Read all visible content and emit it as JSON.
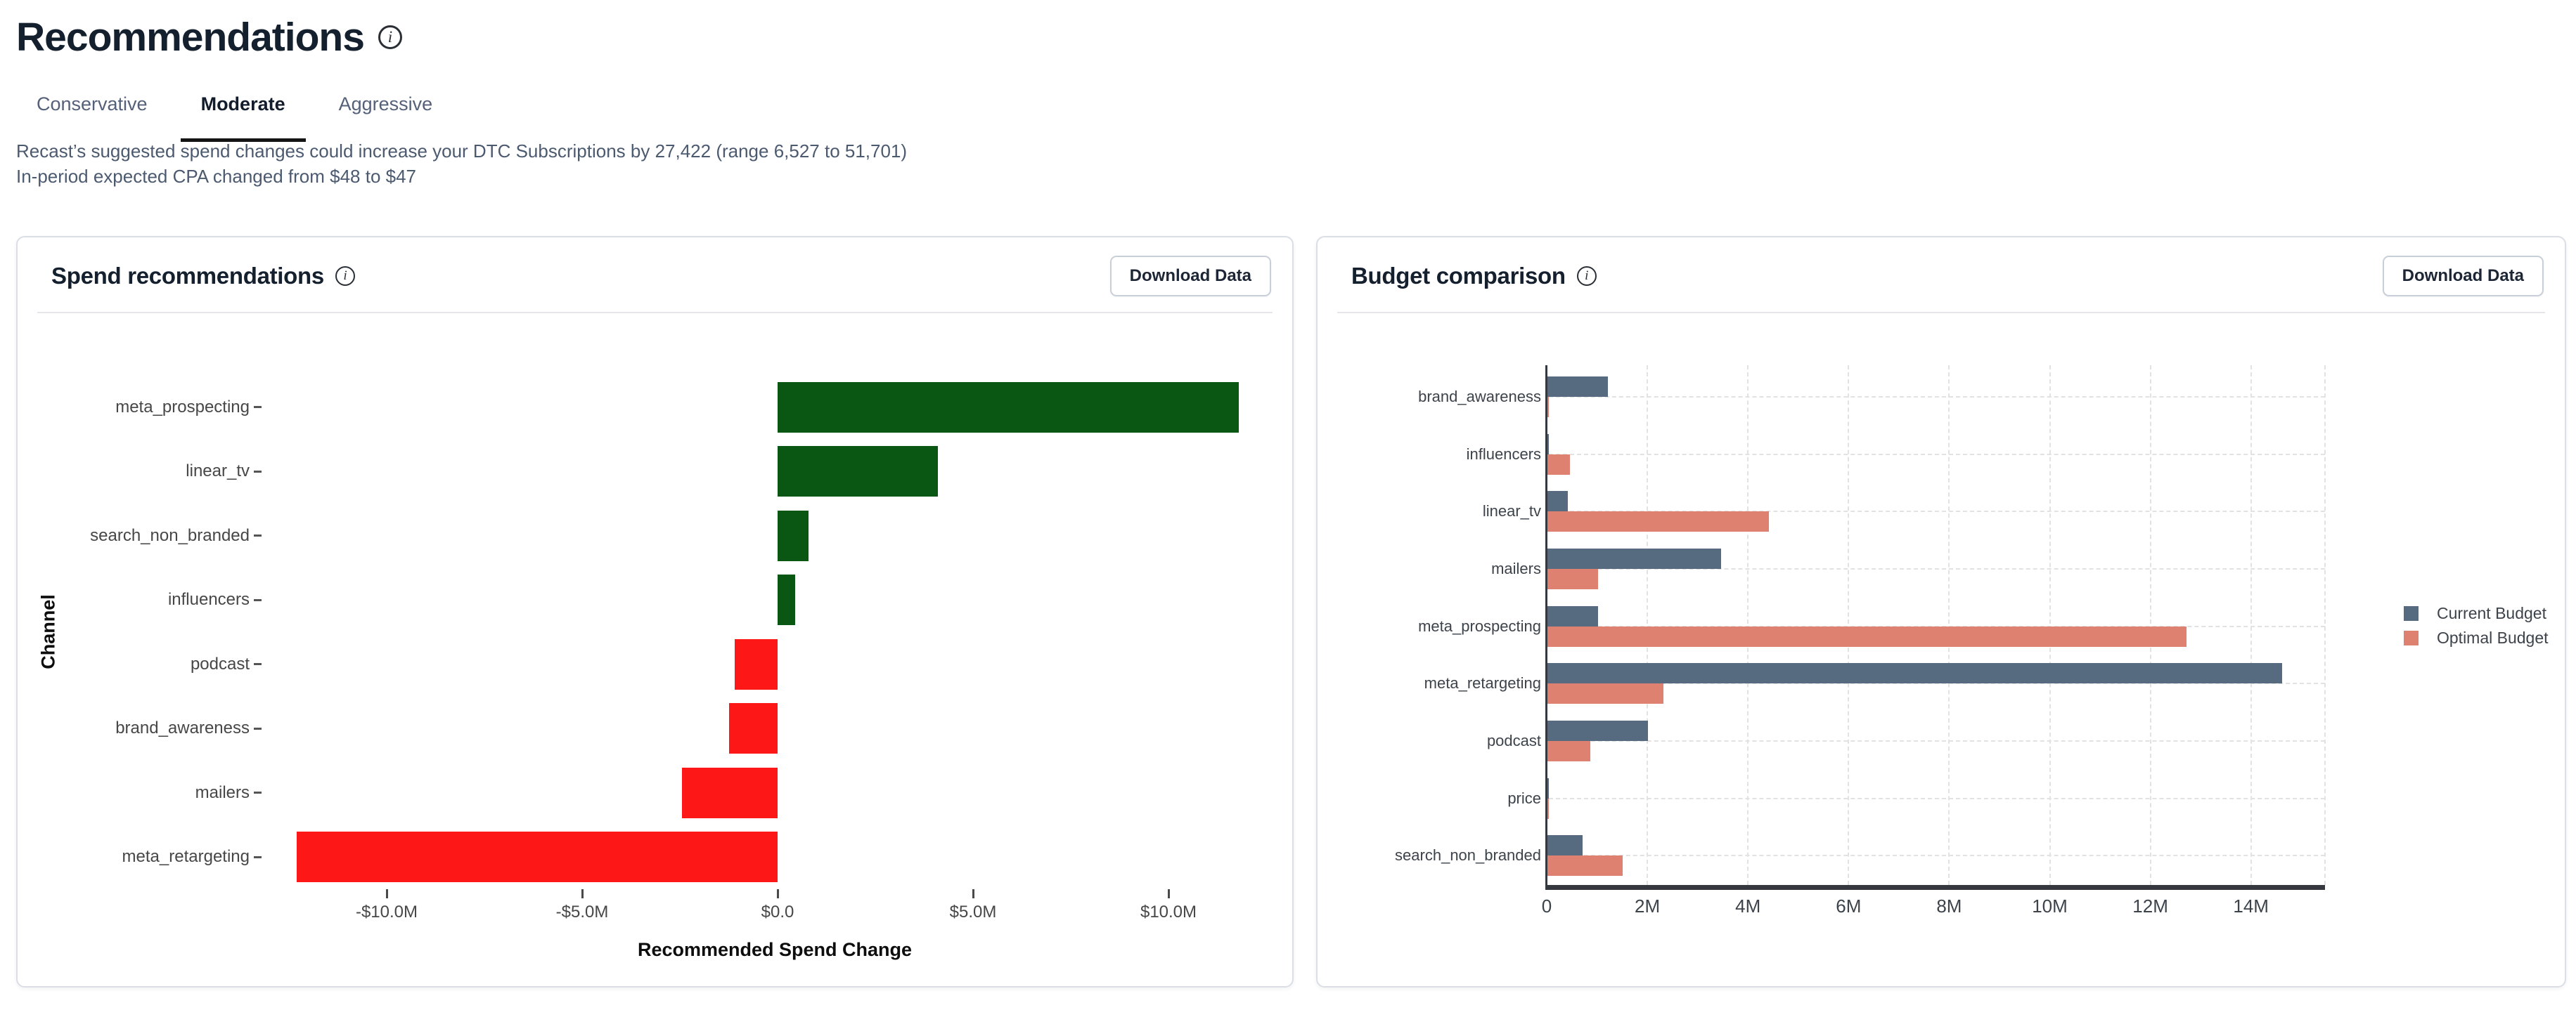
{
  "header": {
    "title": "Recommendations",
    "tabs": [
      {
        "label": "Conservative",
        "active": false
      },
      {
        "label": "Moderate",
        "active": true
      },
      {
        "label": "Aggressive",
        "active": false
      }
    ],
    "summary_line1": "Recast’s suggested spend changes could increase your DTC Subscriptions by 27,422 (range 6,527 to 51,701)",
    "summary_line2": "In-period expected CPA changed from $48 to $47"
  },
  "cards": {
    "spend": {
      "title": "Spend recommendations",
      "download_label": "Download Data"
    },
    "budget": {
      "title": "Budget comparison",
      "download_label": "Download Data"
    }
  },
  "chart_data": [
    {
      "id": "spend_recommendations",
      "type": "bar",
      "orientation": "horizontal",
      "title": "Spend recommendations",
      "categories": [
        "meta_prospecting",
        "linear_tv",
        "search_non_branded",
        "influencers",
        "podcast",
        "brand_awareness",
        "mailers",
        "meta_retargeting"
      ],
      "values": [
        11.8,
        4.1,
        0.8,
        0.45,
        -1.1,
        -1.25,
        -2.45,
        -12.3
      ],
      "unit": "USD millions",
      "xlabel": "Recommended Spend Change",
      "ylabel": "Channel",
      "xlim": [
        -12.7,
        12.55
      ],
      "xticks": [
        -10,
        -5,
        0,
        5,
        10
      ],
      "xtick_labels": [
        "-$10.0M",
        "-$5.0M",
        "$0.0",
        "$5.0M",
        "$10.0M"
      ],
      "grid": false,
      "legend_position": "none",
      "colors": {
        "positive": "#0a5714",
        "negative": "#fd1717"
      }
    },
    {
      "id": "budget_comparison",
      "type": "bar",
      "orientation": "horizontal",
      "title": "Budget comparison",
      "categories": [
        "brand_awareness",
        "influencers",
        "linear_tv",
        "mailers",
        "meta_prospecting",
        "meta_retargeting",
        "podcast",
        "price",
        "search_non_branded"
      ],
      "series": [
        {
          "name": "Current Budget",
          "color": "#566a80",
          "values": [
            1.2,
            0.03,
            0.4,
            3.45,
            1.0,
            14.6,
            2.0,
            0.03,
            0.7
          ]
        },
        {
          "name": "Optimal Budget",
          "color": "#de8170",
          "values": [
            0.03,
            0.45,
            4.4,
            1.0,
            12.7,
            2.3,
            0.85,
            0.02,
            1.5
          ]
        }
      ],
      "unit": "USD millions",
      "xlim": [
        0,
        15.5
      ],
      "xticks": [
        0,
        2,
        4,
        6,
        8,
        10,
        12,
        14
      ],
      "xtick_labels": [
        "0",
        "2M",
        "4M",
        "6M",
        "8M",
        "10M",
        "12M",
        "14M"
      ],
      "grid": true,
      "legend_position": "right"
    }
  ]
}
